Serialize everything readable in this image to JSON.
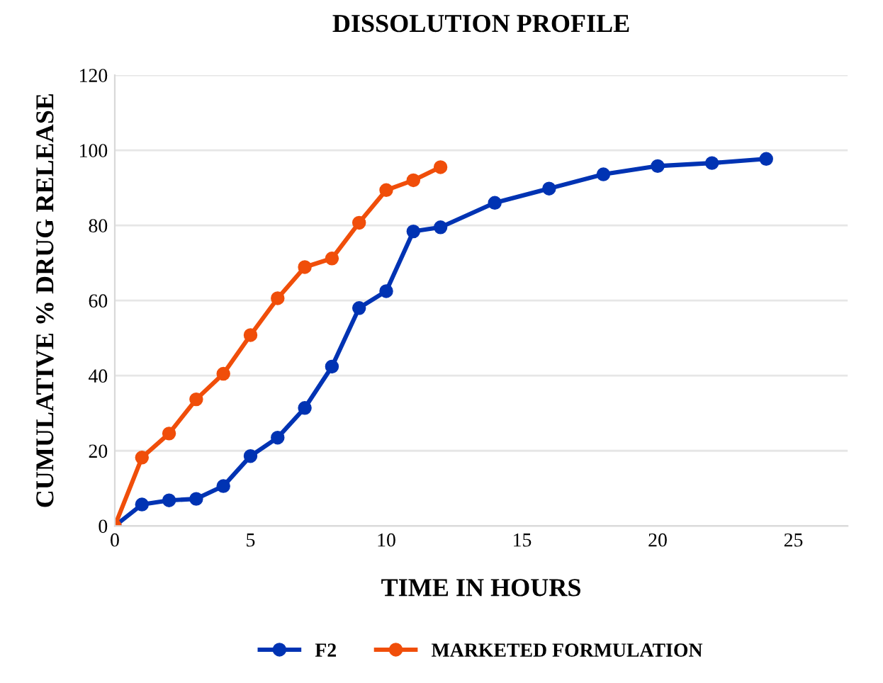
{
  "chart_data": {
    "type": "line",
    "title": "DISSOLUTION PROFILE",
    "xlabel": "TIME IN HOURS",
    "ylabel": "CUMULATIVE % DRUG RELEASE",
    "xlim": [
      0,
      27
    ],
    "xticks": [
      0,
      5,
      10,
      15,
      20,
      25
    ],
    "ylim": [
      0,
      120
    ],
    "yticks": [
      0,
      20,
      40,
      60,
      80,
      100,
      120
    ],
    "grid": "y",
    "legend": "bottom",
    "marker": "circle",
    "line_style": "solid",
    "series": [
      {
        "name": "F2",
        "color": "#0033b3",
        "x": [
          0,
          1,
          2,
          3,
          4,
          5,
          6,
          7,
          8,
          9,
          10,
          11,
          12,
          14,
          16,
          18,
          20,
          22,
          24
        ],
        "values": [
          0,
          5.7,
          6.8,
          7.2,
          10.6,
          18.6,
          23.5,
          31.4,
          42.4,
          58,
          62.5,
          78.4,
          79.5,
          86,
          89.8,
          93.6,
          95.8,
          96.6,
          97.7
        ]
      },
      {
        "name": "MARKETED FORMULATION",
        "color": "#f04e0a",
        "x": [
          0,
          1,
          2,
          3,
          4,
          5,
          6,
          7,
          8,
          9,
          10,
          11,
          12
        ],
        "values": [
          0,
          18.2,
          24.6,
          33.7,
          40.5,
          50.8,
          60.6,
          68.9,
          71.2,
          80.7,
          89.4,
          92,
          95.5
        ]
      }
    ]
  }
}
